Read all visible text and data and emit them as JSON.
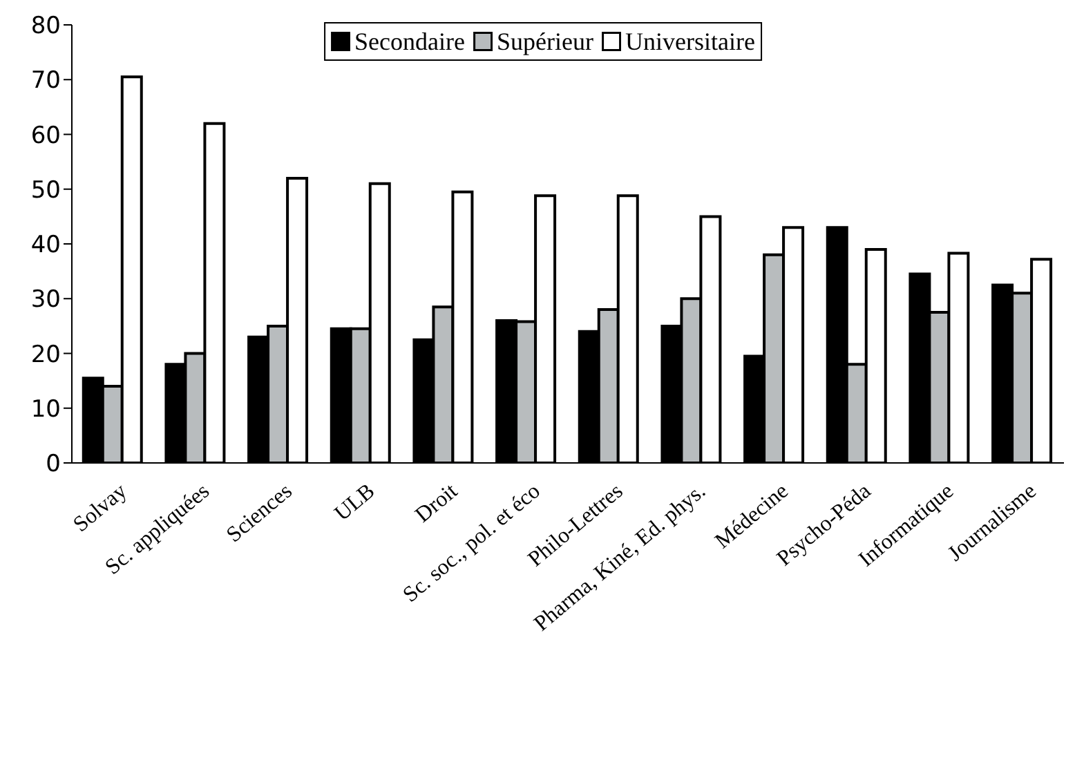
{
  "chart_data": {
    "type": "bar",
    "categories": [
      "Solvay",
      "Sc. appliquées",
      "Sciences",
      "ULB",
      "Droit",
      "Sc. soc., pol. et éco",
      "Philo-Lettres",
      "Pharma, Kiné, Ed. phys.",
      "Médecine",
      "Psycho-Péda",
      "Informatique",
      "Journalisme"
    ],
    "series": [
      {
        "name": "Secondaire",
        "color": "#000000",
        "values": [
          15.5,
          18,
          23,
          24.5,
          22.5,
          26,
          24,
          25,
          19.5,
          43,
          34.5,
          32.5
        ]
      },
      {
        "name": "Supérieur",
        "color": "#b8bcbe",
        "values": [
          14,
          20,
          25,
          24.5,
          28.5,
          25.8,
          28,
          30,
          38,
          18,
          27.5,
          31
        ]
      },
      {
        "name": "Universitaire",
        "color": "#ffffff",
        "values": [
          70.5,
          62,
          52,
          51,
          49.5,
          48.8,
          48.8,
          45,
          43,
          39,
          38.3,
          37.2
        ]
      }
    ],
    "ylim": [
      0,
      80
    ],
    "yticks": [
      0,
      10,
      20,
      30,
      40,
      50,
      60,
      70,
      80
    ],
    "grid": false,
    "legend": "top"
  }
}
